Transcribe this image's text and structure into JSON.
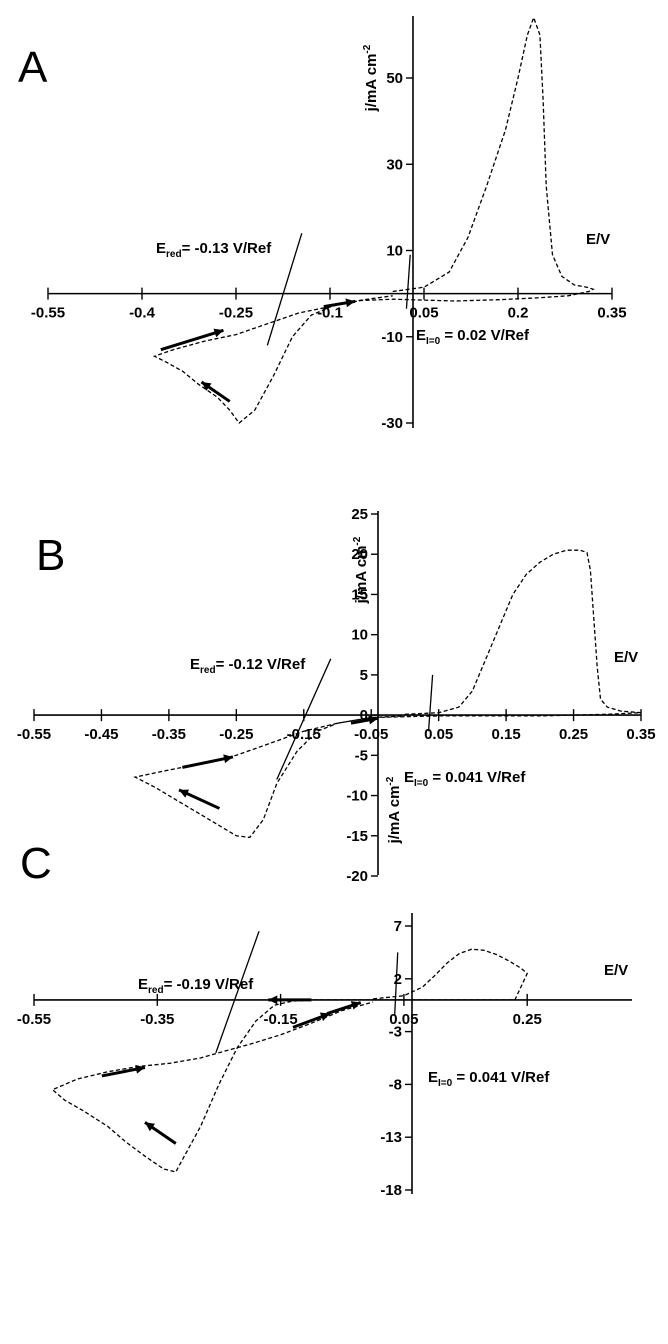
{
  "chart_data": [
    {
      "panel": "A",
      "type": "line",
      "xlabel": "E/V",
      "ylabel": "j/mA cm",
      "ylabel_sup": "-2",
      "x_ticks": [
        -0.55,
        -0.4,
        -0.25,
        -0.1,
        0.05,
        0.2,
        0.35
      ],
      "x_tick_labels": [
        "-0.55",
        "-0.4",
        "-0.25",
        "-0.1",
        "0.05",
        "0.2",
        "0.35"
      ],
      "y_ticks": [
        -30,
        -10,
        10,
        30,
        50
      ],
      "y_tick_labels": [
        "-30",
        "-10",
        "10",
        "30",
        "50"
      ],
      "xlim": [
        -0.55,
        0.35
      ],
      "ylim": [
        -36,
        57
      ],
      "annotations": [
        {
          "main": "E",
          "sub": "red",
          "rest": "= -0.13 V/Ref"
        },
        {
          "main": "E",
          "sub": "I=0",
          "rest": " = 0.02 V/Ref"
        }
      ],
      "marker_lines": [
        {
          "x1": -0.2,
          "y1": -12,
          "x2": -0.145,
          "y2": 14
        },
        {
          "x1": 0.022,
          "y1": -3.5,
          "x2": 0.028,
          "y2": 9
        }
      ],
      "series": [
        {
          "x": [
            0.0,
            0.05,
            0.09,
            0.12,
            0.15,
            0.18,
            0.2,
            0.215,
            0.225,
            0.235,
            0.24,
            0.245,
            0.255,
            0.27,
            0.29,
            0.31,
            0.32,
            0.313,
            0.28,
            0.23,
            0.17,
            0.1,
            0.05,
            0.0,
            -0.05,
            -0.09,
            -0.13,
            -0.16,
            -0.19,
            -0.22,
            -0.245,
            -0.26,
            -0.28,
            -0.31,
            -0.335,
            -0.36,
            -0.38,
            -0.35,
            -0.3,
            -0.25,
            -0.2,
            -0.15,
            -0.1,
            -0.05,
            0.0
          ],
          "y": [
            0.5,
            1.5,
            5,
            13,
            25,
            38,
            50,
            60,
            64,
            60,
            45,
            25,
            9,
            4,
            2,
            1.5,
            1,
            0.5,
            -0.5,
            -1,
            -1.4,
            -1.7,
            -1.5,
            -1.3,
            -1.6,
            -2.5,
            -5,
            -10,
            -19,
            -27,
            -30,
            -27,
            -24,
            -21,
            -18,
            -16,
            -14.5,
            -13,
            -11,
            -9.5,
            -7,
            -4.5,
            -3,
            -1.5,
            -0.5
          ]
        }
      ],
      "arrows": [
        {
          "x": [
            -0.37,
            -0.27
          ],
          "y": [
            -13,
            -8.5
          ]
        },
        {
          "x": [
            -0.26,
            -0.305
          ],
          "y": [
            -25,
            -20.5
          ]
        },
        {
          "x": [
            -0.11,
            -0.06
          ],
          "y": [
            -3,
            -1.8
          ]
        }
      ]
    },
    {
      "panel": "B",
      "type": "line",
      "xlabel": "E/V",
      "ylabel": "j/mA cm",
      "ylabel_sup": "-2",
      "x_ticks": [
        -0.55,
        -0.45,
        -0.35,
        -0.25,
        -0.15,
        -0.05,
        0.05,
        0.15,
        0.25,
        0.35
      ],
      "x_tick_labels": [
        "-0.55",
        "-0.45",
        "-0.35",
        "-0.25",
        "-0.15",
        "-0.05",
        "0.05",
        "0.15",
        "0.25",
        "0.35"
      ],
      "y_ticks": [
        -20,
        -15,
        -10,
        -5,
        0,
        5,
        10,
        15,
        20,
        25
      ],
      "y_tick_labels": [
        "-20",
        "-15",
        "-10",
        "-5",
        "0",
        "5",
        "10",
        "15",
        "20",
        "25"
      ],
      "xlim": [
        -0.55,
        0.35
      ],
      "ylim": [
        -20,
        25
      ],
      "annotations": [
        {
          "main": "E",
          "sub": "red",
          "rest": "= -0.12 V/Ref"
        },
        {
          "main": "E",
          "sub": "I=0",
          "rest": " = 0.041 V/Ref"
        }
      ],
      "marker_lines": [
        {
          "x1": -0.19,
          "y1": -8,
          "x2": -0.11,
          "y2": 7
        },
        {
          "x1": 0.035,
          "y1": -2,
          "x2": 0.041,
          "y2": 5
        }
      ],
      "series": [
        {
          "x": [
            0.0,
            0.05,
            0.08,
            0.1,
            0.12,
            0.14,
            0.16,
            0.18,
            0.2,
            0.22,
            0.24,
            0.26,
            0.27,
            0.275,
            0.28,
            0.285,
            0.29,
            0.3,
            0.32,
            0.35,
            0.3,
            0.25,
            0.2,
            0.15,
            0.1,
            0.05,
            0.0,
            -0.05,
            -0.1,
            -0.13,
            -0.16,
            -0.19,
            -0.21,
            -0.23,
            -0.25,
            -0.28,
            -0.31,
            -0.34,
            -0.37,
            -0.4,
            -0.36,
            -0.3,
            -0.25,
            -0.2,
            -0.15,
            -0.1,
            -0.05,
            0.0
          ],
          "y": [
            0.1,
            0.3,
            1,
            3,
            7,
            11,
            15,
            17.5,
            19,
            20,
            20.5,
            20.5,
            20.2,
            18,
            12,
            6,
            2,
            1,
            0.5,
            0.3,
            0.1,
            0.0,
            -0.1,
            -0.1,
            -0.1,
            -0.1,
            -0.2,
            -0.3,
            -1,
            -2,
            -4.5,
            -8.5,
            -13,
            -15.2,
            -15,
            -13.5,
            -12,
            -10.5,
            -9,
            -7.7,
            -7,
            -6,
            -5,
            -3.5,
            -2,
            -1,
            -0.3,
            -0.1
          ]
        }
      ],
      "arrows": [
        {
          "x": [
            -0.33,
            -0.255
          ],
          "y": [
            -6.5,
            -5.2
          ]
        },
        {
          "x": [
            -0.275,
            -0.335
          ],
          "y": [
            -11.6,
            -9.3
          ]
        },
        {
          "x": [
            -0.08,
            -0.04
          ],
          "y": [
            -1.0,
            -0.4
          ]
        }
      ]
    },
    {
      "panel": "C",
      "type": "line",
      "xlabel": "E/V",
      "ylabel": "j/mA cm",
      "ylabel_sup": "-2",
      "x_ticks": [
        -0.55,
        -0.35,
        -0.15,
        0.05,
        0.25
      ],
      "x_tick_labels": [
        "-0.55",
        "-0.35",
        "-0.15",
        "0.05",
        "0.25"
      ],
      "y_ticks": [
        -18,
        -13,
        -8,
        -3,
        2,
        7
      ],
      "y_tick_labels": [
        "-18",
        "-13",
        "-8",
        "-3",
        "2",
        "7"
      ],
      "xlim": [
        -0.55,
        0.42
      ],
      "ylim": [
        -18,
        10
      ],
      "annotations": [
        {
          "main": "E",
          "sub": "red",
          "rest": "= -0.19 V/Ref"
        },
        {
          "main": "E",
          "sub": "I=0",
          "rest": " = 0.041 V/Ref"
        }
      ],
      "marker_lines": [
        {
          "x1": -0.255,
          "y1": -5,
          "x2": -0.185,
          "y2": 6.5
        },
        {
          "x1": 0.035,
          "y1": -1.5,
          "x2": 0.04,
          "y2": 4.5
        }
      ],
      "series": [
        {
          "x": [
            0.0,
            0.05,
            0.08,
            0.1,
            0.12,
            0.14,
            0.16,
            0.18,
            0.2,
            0.22,
            0.24,
            0.25,
            0.23,
            0.2,
            0.15,
            0.1,
            0.05,
            0.0,
            -0.05,
            -0.1,
            -0.13,
            -0.16,
            -0.19,
            -0.22,
            -0.25,
            -0.28,
            -0.31,
            -0.32,
            -0.34,
            -0.37,
            -0.4,
            -0.43,
            -0.47,
            -0.5,
            -0.52,
            -0.48,
            -0.43,
            -0.38,
            -0.33,
            -0.28,
            -0.25,
            -0.2,
            -0.15,
            -0.1,
            -0.05,
            0.0
          ],
          "y": [
            0.1,
            0.4,
            1.2,
            2.3,
            3.5,
            4.4,
            4.8,
            4.7,
            4.3,
            3.7,
            3.0,
            2.5,
            0.0,
            0.0,
            0.0,
            0.0,
            0.0,
            0.0,
            0.0,
            0.0,
            -0.1,
            -0.5,
            -2,
            -4.5,
            -8,
            -12,
            -15.2,
            -16.3,
            -16,
            -14.8,
            -13.5,
            -12,
            -10.5,
            -9.5,
            -8.5,
            -7.5,
            -6.8,
            -6.3,
            -6.0,
            -5.5,
            -5.0,
            -4.2,
            -3.3,
            -2.2,
            -1.0,
            -0.2
          ]
        }
      ],
      "arrows": [
        {
          "x": [
            -0.44,
            -0.37
          ],
          "y": [
            -7.2,
            -6.4
          ]
        },
        {
          "x": [
            -0.32,
            -0.37
          ],
          "y": [
            -13.6,
            -11.6
          ]
        },
        {
          "x": [
            -0.1,
            -0.17
          ],
          "y": [
            0.0,
            0.0
          ]
        },
        {
          "x": [
            -0.13,
            -0.07
          ],
          "y": [
            -2.6,
            -1.3
          ]
        },
        {
          "x": [
            -0.075,
            -0.02
          ],
          "y": [
            -1.3,
            -0.25
          ]
        }
      ]
    }
  ]
}
